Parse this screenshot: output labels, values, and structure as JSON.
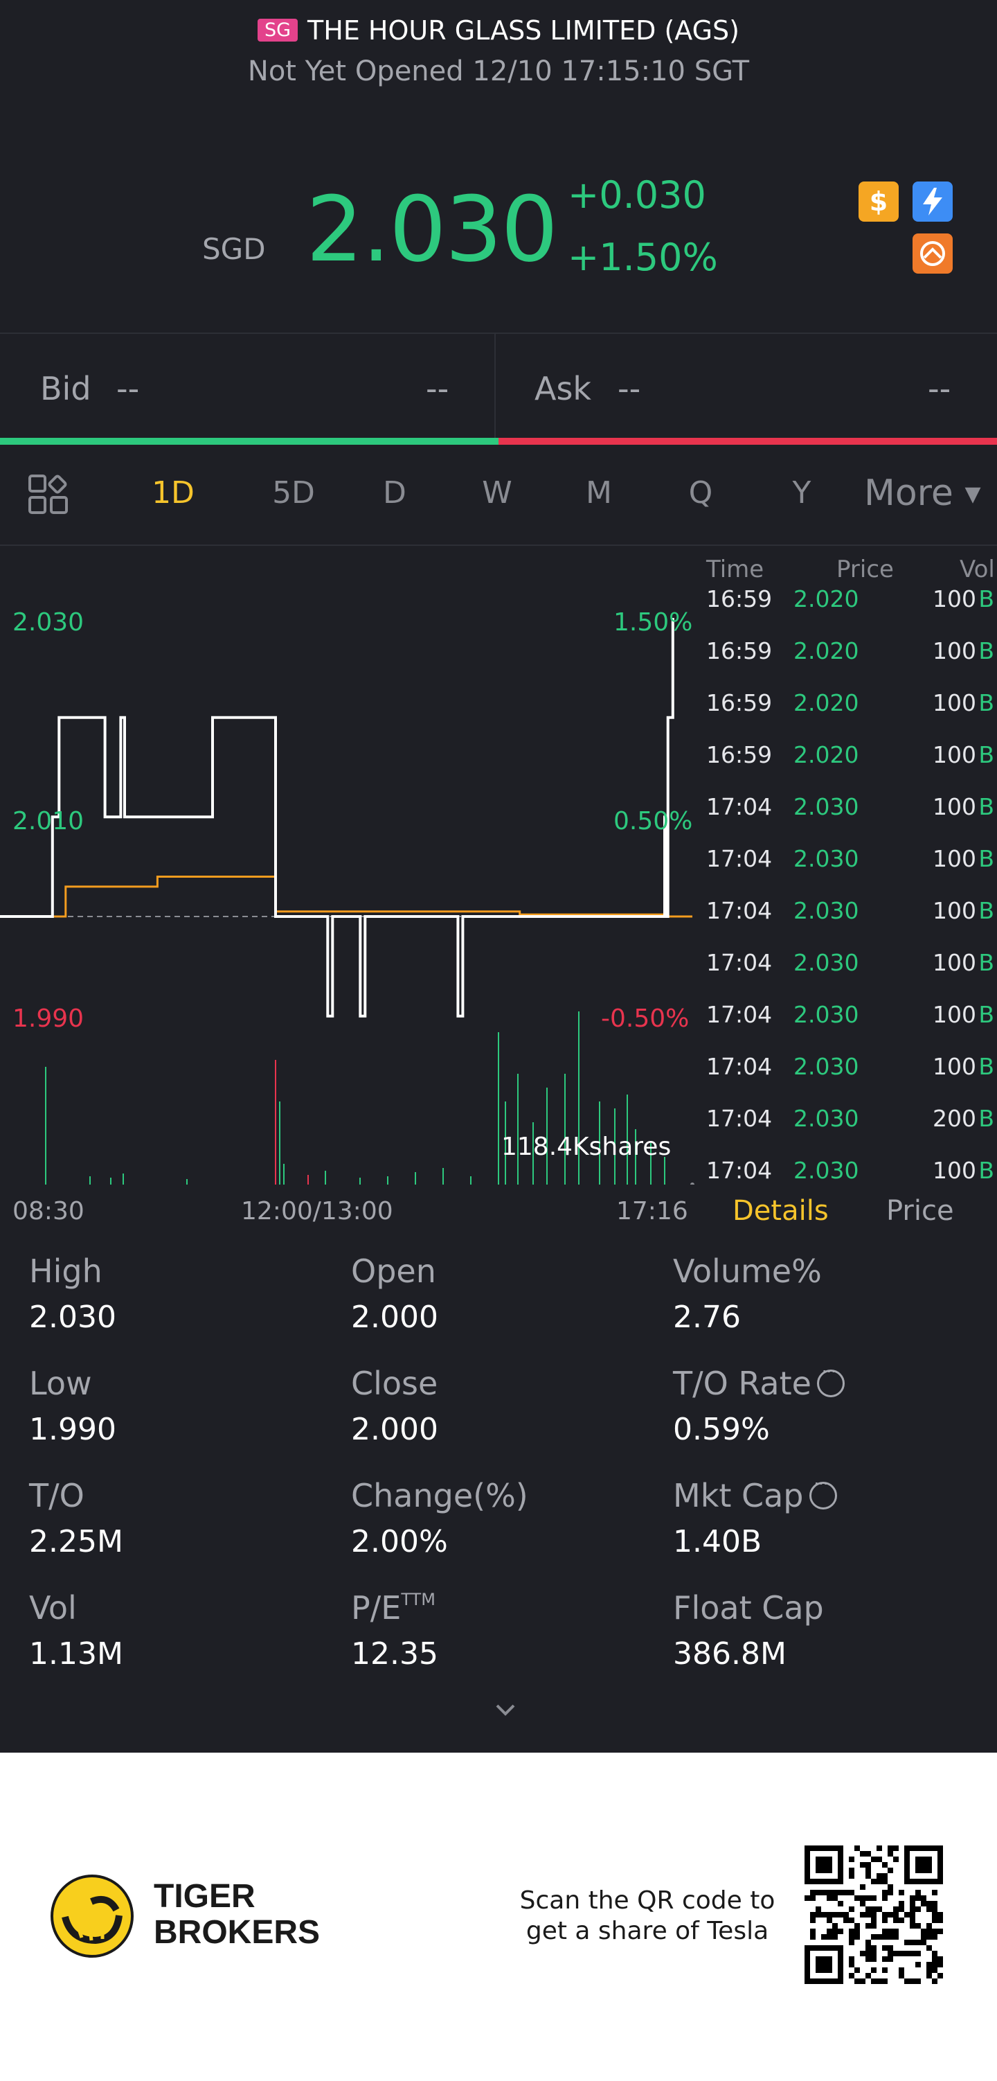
{
  "header": {
    "market_badge": "SG",
    "title": "THE HOUR GLASS LIMITED (AGS)",
    "status": "Not Yet Opened 12/10 17:15:10 SGT",
    "currency": "SGD",
    "last_price": "2.030",
    "change_abs": "+0.030",
    "change_pct": "+1.50%",
    "icons": [
      "dollar-icon",
      "flash-icon",
      "tiger-icon"
    ]
  },
  "bidask": {
    "bid_label": "Bid",
    "bid_price": "--",
    "bid_size": "--",
    "ask_label": "Ask",
    "ask_price": "--",
    "ask_size": "--"
  },
  "tabs": {
    "items": [
      "1D",
      "5D",
      "D",
      "W",
      "M",
      "Q",
      "Y"
    ],
    "active": "1D",
    "more": "More"
  },
  "chart": {
    "price_labels": {
      "top": "2.030",
      "mid": "2.010",
      "bottom": "1.990"
    },
    "pct_labels": {
      "top": "1.50%",
      "mid": "0.50%",
      "bottom": "-0.50%"
    },
    "volume_label": "118.4Kshares",
    "x_labels": [
      "08:30",
      "12:00/13:00",
      "17:16"
    ]
  },
  "chart_data": {
    "type": "line",
    "title": "",
    "xlabel": "",
    "ylabel": "",
    "x_ticks": [
      "08:30",
      "12:00/13:00",
      "17:16"
    ],
    "ylim": [
      1.99,
      2.03
    ],
    "reference_close": 2.0,
    "series": [
      {
        "name": "",
        "color": "#ffffff",
        "points": [
          [
            "08:30",
            2.0
          ],
          [
            "09:05",
            2.0
          ],
          [
            "09:10",
            2.01
          ],
          [
            "09:15",
            2.02
          ],
          [
            "09:45",
            2.02
          ],
          [
            "09:50",
            2.01
          ],
          [
            "10:00",
            2.01
          ],
          [
            "10:02",
            2.02
          ],
          [
            "10:05",
            2.01
          ],
          [
            "11:10",
            2.01
          ],
          [
            "11:12",
            2.02
          ],
          [
            "12:00",
            2.02
          ],
          [
            "13:00",
            2.0
          ],
          [
            "13:30",
            2.0
          ],
          [
            "13:32",
            1.99
          ],
          [
            "13:35",
            2.0
          ],
          [
            "13:50",
            2.0
          ],
          [
            "13:52",
            1.99
          ],
          [
            "13:55",
            2.0
          ],
          [
            "14:50",
            2.0
          ],
          [
            "14:52",
            1.99
          ],
          [
            "14:55",
            2.0
          ],
          [
            "16:58",
            2.0
          ],
          [
            "16:59",
            2.01
          ],
          [
            "17:00",
            2.0
          ],
          [
            "17:01",
            2.02
          ],
          [
            "17:03",
            2.02
          ],
          [
            "17:04",
            2.03
          ]
        ]
      },
      {
        "name": "",
        "color": "#f39c1f",
        "points": [
          [
            "08:30",
            2.0
          ],
          [
            "09:10",
            2.0
          ],
          [
            "09:20",
            2.003
          ],
          [
            "10:30",
            2.004
          ],
          [
            "12:00",
            2.004
          ],
          [
            "13:00",
            2.0005
          ],
          [
            "15:30",
            2.0002
          ],
          [
            "17:00",
            2.0
          ],
          [
            "17:16",
            2.0
          ]
        ]
      }
    ],
    "volume": {
      "unit": "shares",
      "max_label": "118.4Kshares"
    }
  },
  "ticks": {
    "headers": {
      "time": "Time",
      "price": "Price",
      "vol": "Vol"
    },
    "rows": [
      {
        "time": "16:59",
        "price": "2.020",
        "vol": "100",
        "side": "B"
      },
      {
        "time": "16:59",
        "price": "2.020",
        "vol": "100",
        "side": "B"
      },
      {
        "time": "16:59",
        "price": "2.020",
        "vol": "100",
        "side": "B"
      },
      {
        "time": "16:59",
        "price": "2.020",
        "vol": "100",
        "side": "B"
      },
      {
        "time": "17:04",
        "price": "2.030",
        "vol": "100",
        "side": "B"
      },
      {
        "time": "17:04",
        "price": "2.030",
        "vol": "100",
        "side": "B"
      },
      {
        "time": "17:04",
        "price": "2.030",
        "vol": "100",
        "side": "B"
      },
      {
        "time": "17:04",
        "price": "2.030",
        "vol": "100",
        "side": "B"
      },
      {
        "time": "17:04",
        "price": "2.030",
        "vol": "100",
        "side": "B"
      },
      {
        "time": "17:04",
        "price": "2.030",
        "vol": "100",
        "side": "B"
      },
      {
        "time": "17:04",
        "price": "2.030",
        "vol": "200",
        "side": "B"
      },
      {
        "time": "17:04",
        "price": "2.030",
        "vol": "100",
        "side": "B"
      }
    ],
    "tab_details": "Details",
    "tab_price": "Price"
  },
  "stats": {
    "high": {
      "label": "High",
      "value": "2.030"
    },
    "open": {
      "label": "Open",
      "value": "2.000"
    },
    "volume_pct": {
      "label": "Volume%",
      "value": "2.76"
    },
    "low": {
      "label": "Low",
      "value": "1.990"
    },
    "close": {
      "label": "Close",
      "value": "2.000"
    },
    "to_rate": {
      "label": "T/O Rate",
      "value": "0.59%"
    },
    "to": {
      "label": "T/O",
      "value": "2.25M"
    },
    "change": {
      "label": "Change(%)",
      "value": "2.00%"
    },
    "mkt_cap": {
      "label": "Mkt Cap",
      "value": "1.40B"
    },
    "vol": {
      "label": "Vol",
      "value": "1.13M"
    },
    "pe": {
      "label": "P/E",
      "label_sup": "TTM",
      "value": "12.35"
    },
    "float_cap": {
      "label": "Float Cap",
      "value": "386.8M"
    }
  },
  "footer": {
    "brand_line1": "TIGER",
    "brand_line2": "BROKERS",
    "promo_line1": "Scan the QR code to",
    "promo_line2": "get a share of Tesla"
  }
}
